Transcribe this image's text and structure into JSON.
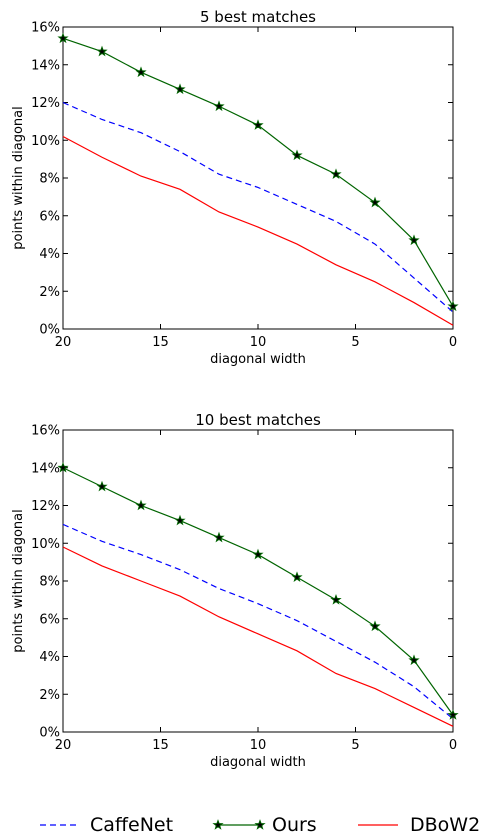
{
  "chart_data": [
    {
      "type": "line",
      "title": "5 best matches",
      "xlabel": "diagonal width",
      "ylabel": "points within diagonal",
      "xlim": [
        20,
        0
      ],
      "ylim": [
        0,
        16
      ],
      "xticks": [
        "20",
        "15",
        "10",
        "5",
        "0"
      ],
      "yticks": [
        "0%",
        "2%",
        "4%",
        "6%",
        "8%",
        "10%",
        "12%",
        "14%",
        "16%"
      ],
      "grid": false,
      "series": [
        {
          "name": "CaffeNet",
          "style": "dashed",
          "color": "#0000ff",
          "x": [
            20,
            18,
            16,
            14,
            12,
            10,
            8,
            6,
            4,
            2,
            0
          ],
          "y": [
            12.0,
            11.1,
            10.4,
            9.4,
            8.2,
            7.5,
            6.6,
            5.7,
            4.5,
            2.7,
            0.9
          ]
        },
        {
          "name": "Ours",
          "style": "solid-star",
          "color": "#006400",
          "x": [
            20,
            18,
            16,
            14,
            12,
            10,
            8,
            6,
            4,
            2,
            0
          ],
          "y": [
            15.4,
            14.7,
            13.6,
            12.7,
            11.8,
            10.8,
            9.2,
            8.2,
            6.7,
            4.7,
            1.2
          ]
        },
        {
          "name": "DBoW2",
          "style": "solid",
          "color": "#ff0000",
          "x": [
            20,
            18,
            16,
            14,
            12,
            10,
            8,
            6,
            4,
            2,
            0
          ],
          "y": [
            10.2,
            9.1,
            8.1,
            7.4,
            6.2,
            5.4,
            4.5,
            3.4,
            2.5,
            1.4,
            0.2
          ]
        }
      ]
    },
    {
      "type": "line",
      "title": "10 best matches",
      "xlabel": "diagonal width",
      "ylabel": "points within diagonal",
      "xlim": [
        20,
        0
      ],
      "ylim": [
        0,
        16
      ],
      "xticks": [
        "20",
        "15",
        "10",
        "5",
        "0"
      ],
      "yticks": [
        "0%",
        "2%",
        "4%",
        "6%",
        "8%",
        "10%",
        "12%",
        "14%",
        "16%"
      ],
      "grid": false,
      "series": [
        {
          "name": "CaffeNet",
          "style": "dashed",
          "color": "#0000ff",
          "x": [
            20,
            18,
            16,
            14,
            12,
            10,
            8,
            6,
            4,
            2,
            0
          ],
          "y": [
            11.0,
            10.1,
            9.4,
            8.6,
            7.6,
            6.8,
            5.9,
            4.8,
            3.7,
            2.4,
            0.7
          ]
        },
        {
          "name": "Ours",
          "style": "solid-star",
          "color": "#006400",
          "x": [
            20,
            18,
            16,
            14,
            12,
            10,
            8,
            6,
            4,
            2,
            0
          ],
          "y": [
            14.0,
            13.0,
            12.0,
            11.2,
            10.3,
            9.4,
            8.2,
            7.0,
            5.6,
            3.8,
            0.9
          ]
        },
        {
          "name": "DBoW2",
          "style": "solid",
          "color": "#ff0000",
          "x": [
            20,
            18,
            16,
            14,
            12,
            10,
            8,
            6,
            4,
            2,
            0
          ],
          "y": [
            9.8,
            8.8,
            8.0,
            7.2,
            6.1,
            5.2,
            4.3,
            3.1,
            2.3,
            1.3,
            0.3
          ]
        }
      ]
    }
  ],
  "legend": {
    "placement": "bottom",
    "entries": [
      {
        "label": "CaffeNet",
        "style": "dashed",
        "color": "#0000ff"
      },
      {
        "label": "Ours",
        "style": "solid-star",
        "color": "#006400"
      },
      {
        "label": "DBoW2",
        "style": "solid",
        "color": "#ff0000"
      }
    ]
  }
}
